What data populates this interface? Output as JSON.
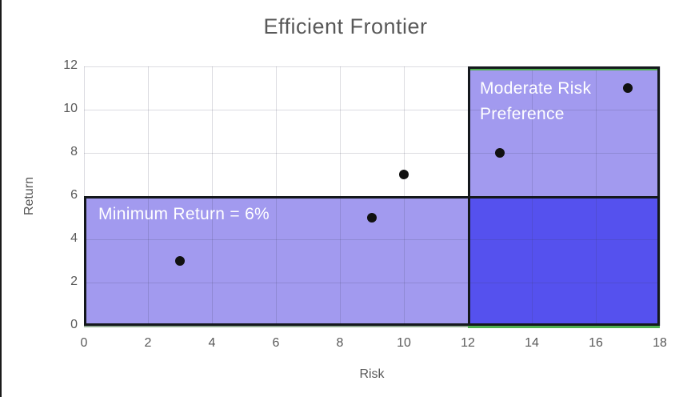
{
  "header": {
    "title": "Efficient Frontier"
  },
  "chart_data": {
    "type": "scatter",
    "title": "Efficient Frontier",
    "xlabel": "Risk",
    "ylabel": "Return",
    "xlim": [
      0,
      18
    ],
    "ylim": [
      0,
      12
    ],
    "xticks": [
      0,
      2,
      4,
      6,
      8,
      10,
      12,
      14,
      16,
      18
    ],
    "yticks": [
      0,
      2,
      4,
      6,
      8,
      10,
      12
    ],
    "grid": true,
    "legend": "none",
    "points": [
      {
        "x": 3,
        "y": 3
      },
      {
        "x": 9,
        "y": 5
      },
      {
        "x": 10,
        "y": 7
      },
      {
        "x": 13,
        "y": 8
      },
      {
        "x": 17,
        "y": 11
      }
    ],
    "regions": [
      {
        "name": "minimum-return",
        "label": "Minimum Return = 6%",
        "x": [
          0,
          18
        ],
        "y": [
          0,
          6
        ]
      },
      {
        "name": "moderate-risk",
        "label": "Moderate Risk Preference",
        "x": [
          12,
          18
        ],
        "y": [
          0,
          12
        ]
      }
    ],
    "colors": {
      "region_fill": "#a29aef",
      "region_fill_overlap": "#5551ee",
      "region_border": "#14181c",
      "accent_green": "#50b050",
      "accent_green_dark": "rgba(40,90,40,0.45)",
      "point": "#111111",
      "label_text": "#ffffff",
      "axis_text": "#595959",
      "gridline": "rgba(60,60,90,0.18)"
    }
  }
}
